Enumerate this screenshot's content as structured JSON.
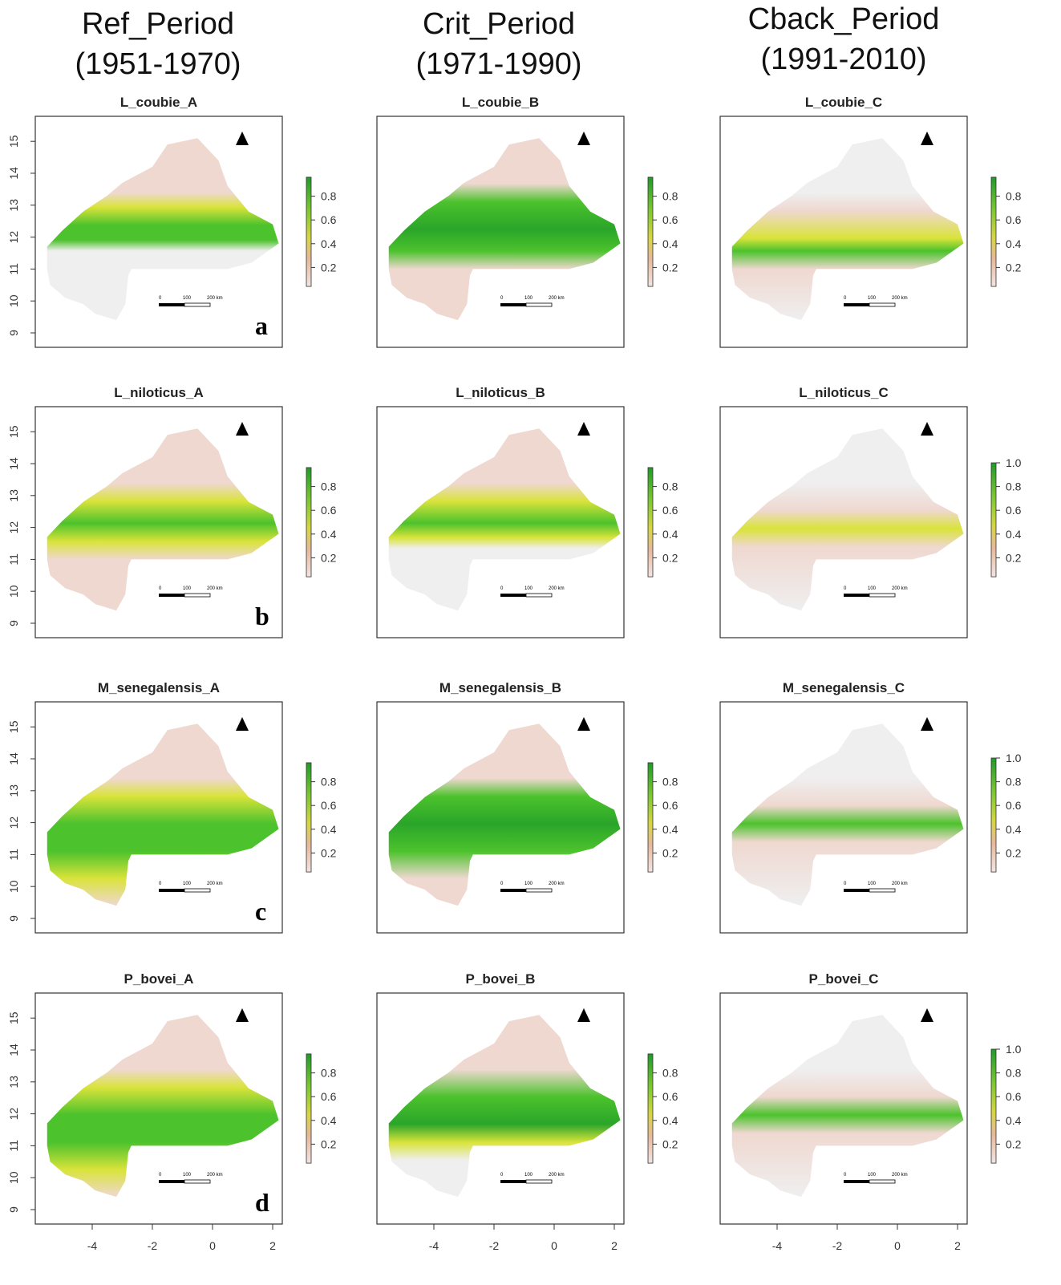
{
  "columns": [
    {
      "title": "Ref_Period",
      "period": "(1951-1970)"
    },
    {
      "title": "Crit_Period",
      "period": "(1971-1990)"
    },
    {
      "title": "Cback_Period",
      "period": "(1991-2010)"
    }
  ],
  "rows": [
    {
      "letter": "a",
      "panels": [
        {
          "title": "L_coubie_A",
          "legend_ticks": [
            0.2,
            0.4,
            0.6,
            0.8
          ]
        },
        {
          "title": "L_coubie_B",
          "legend_ticks": [
            0.2,
            0.4,
            0.6,
            0.8
          ]
        },
        {
          "title": "L_coubie_C",
          "legend_ticks": [
            0.2,
            0.4,
            0.6,
            0.8
          ]
        }
      ]
    },
    {
      "letter": "b",
      "panels": [
        {
          "title": "L_niloticus_A",
          "legend_ticks": [
            0.2,
            0.4,
            0.6,
            0.8
          ]
        },
        {
          "title": "L_niloticus_B",
          "legend_ticks": [
            0.2,
            0.4,
            0.6,
            0.8
          ]
        },
        {
          "title": "L_niloticus_C",
          "legend_ticks": [
            0.2,
            0.4,
            0.6,
            0.8,
            {
              "value": 1,
              "label": "1.0"
            }
          ]
        }
      ]
    },
    {
      "letter": "c",
      "panels": [
        {
          "title": "M_senegalensis_A",
          "legend_ticks": [
            0.2,
            0.4,
            0.6,
            0.8
          ]
        },
        {
          "title": "M_senegalensis_B",
          "legend_ticks": [
            0.2,
            0.4,
            0.6,
            0.8
          ]
        },
        {
          "title": "M_senegalensis_C",
          "legend_ticks": [
            0.2,
            0.4,
            0.6,
            0.8,
            {
              "value": 1,
              "label": "1.0"
            }
          ]
        }
      ]
    },
    {
      "letter": "d",
      "panels": [
        {
          "title": "P_bovei_A",
          "legend_ticks": [
            0.2,
            0.4,
            0.6,
            0.8
          ]
        },
        {
          "title": "P_bovei_B",
          "legend_ticks": [
            0.2,
            0.4,
            0.6,
            0.8
          ]
        },
        {
          "title": "P_bovei_C",
          "legend_ticks": [
            0.2,
            0.4,
            0.6,
            0.8,
            {
              "value": 1,
              "label": "1.0"
            }
          ]
        }
      ]
    }
  ],
  "yticks": [
    9,
    10,
    11,
    12,
    13,
    14,
    15
  ],
  "xticks": [
    -4,
    -2,
    0,
    2
  ],
  "scale_bar": [
    "0",
    "100",
    "200 km"
  ]
}
